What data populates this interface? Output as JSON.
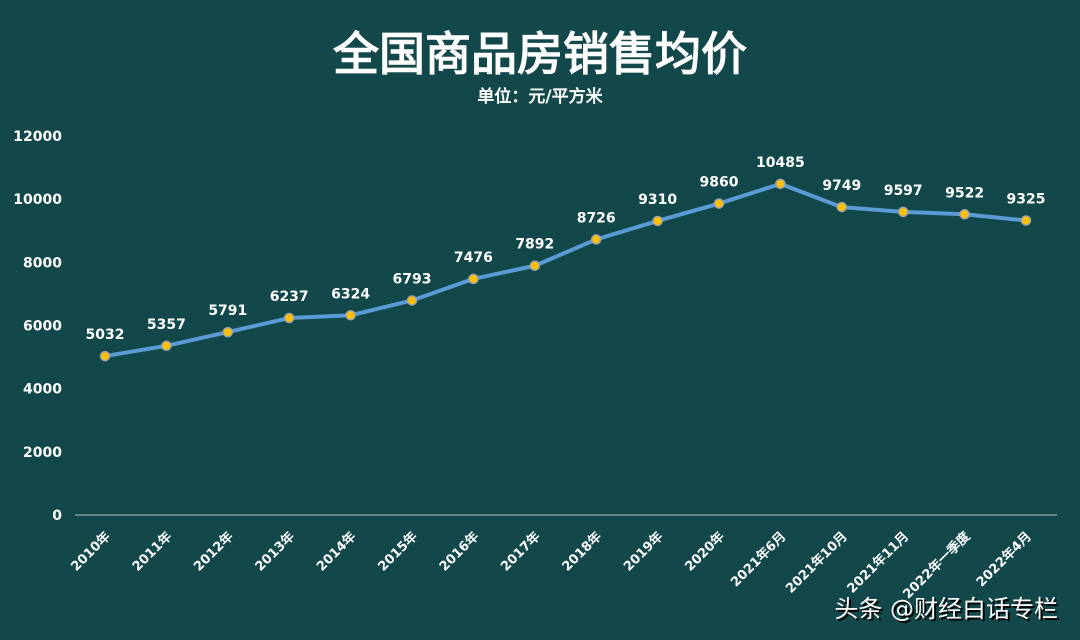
{
  "chart_data": {
    "type": "line",
    "title": "全国商品房销售均价",
    "subtitle": "单位：元/平方米",
    "categories": [
      "2010年",
      "2011年",
      "2012年",
      "2013年",
      "2014年",
      "2015年",
      "2016年",
      "2017年",
      "2018年",
      "2019年",
      "2020年",
      "2021年6月",
      "2021年10月",
      "2021年11月",
      "2022年一季度",
      "2022年4月"
    ],
    "values": [
      5032,
      5357,
      5791,
      6237,
      6324,
      6793,
      7476,
      7892,
      8726,
      9310,
      9860,
      10485,
      9749,
      9597,
      9522,
      9325
    ],
    "ylim": [
      0,
      12000
    ],
    "yticks": [
      0,
      2000,
      4000,
      6000,
      8000,
      10000,
      12000
    ],
    "grid": false,
    "line_color": "#5b9bd5",
    "marker_color": "#ffc000"
  },
  "watermark": "头条 @财经白话专栏"
}
